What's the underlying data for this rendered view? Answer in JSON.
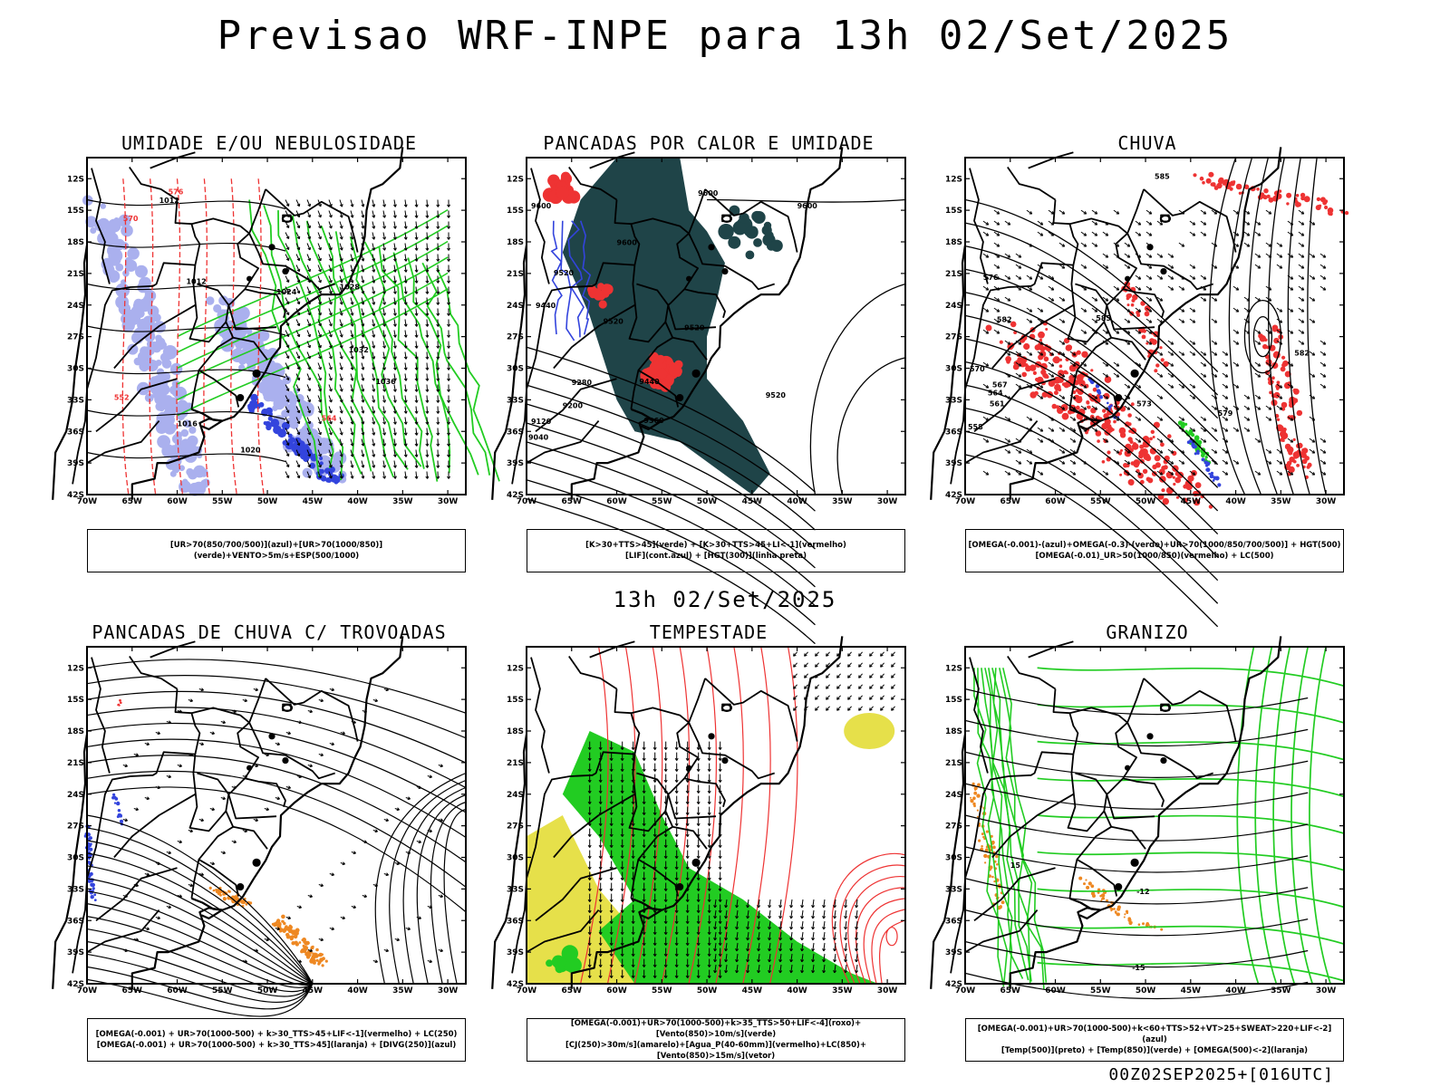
{
  "title": "Previsao WRF-INPE  para 13h 02/Set/2025",
  "subtitle": "13h 02/Set/2025",
  "footer": "00Z02SEP2025+[016UTC]",
  "axes": {
    "lat_labels": [
      "12S",
      "15S",
      "18S",
      "21S",
      "24S",
      "27S",
      "30S",
      "33S",
      "36S",
      "39S",
      "42S"
    ],
    "lon_labels": [
      "70W",
      "65W",
      "60W",
      "55W",
      "50W",
      "45W",
      "40W",
      "35W",
      "30W"
    ]
  },
  "colors": {
    "blue": "#3344dd",
    "lavender": "#aab0ee",
    "green": "#22cc22",
    "red": "#ee3333",
    "orange": "#ee8822",
    "yellow": "#e6e04a",
    "darkslate": "#1f4448"
  },
  "panels": [
    {
      "title": "UMIDADE E/OU NEBULOSIDADE",
      "legend": [
        "[UR>70(850/700/500)](azul)+[UR>70(1000/850)](verde)+VENTO>5m/s+ESP(500/1000)"
      ],
      "contour_labels": [
        "1012",
        "1016",
        "1020",
        "1024",
        "1028",
        "1032",
        "1036",
        "564",
        "570",
        "576",
        "552"
      ]
    },
    {
      "title": "PANCADAS POR CALOR E UMIDADE",
      "legend": [
        "[K>30+TTS>45](verde) + [K>30+TTS>45+LI<-1](vermelho)",
        "[LIF](cont.azul) + [HGT(300)](linha preta)"
      ],
      "contour_labels": [
        "9600",
        "9520",
        "9440",
        "9360",
        "9280",
        "9200",
        "9120",
        "9040"
      ]
    },
    {
      "title": "CHUVA",
      "legend": [
        "[OMEGA(-0.001)-(azul)+OMEGA(-0.3)-(verde)+UR>70(1000/850/700/500)] + HGT(500)",
        "[OMEGA(-0.01)_UR>50(1000/850)(vermelho) + LC(500)"
      ],
      "contour_labels": [
        "585",
        "582",
        "579",
        "576",
        "573",
        "570",
        "567",
        "564",
        "561",
        "558"
      ]
    },
    {
      "title": "PANCADAS DE CHUVA C/ TROVOADAS",
      "legend": [
        "[OMEGA(-0.001) + UR>70(1000-500) + k>30_TTS>45+LIF<-1](vermelho) + LC(250)",
        "[OMEGA(-0.001) + UR>70(1000-500) + k>30_TTS>45](laranja) + [DIVG(250)](azul)"
      ],
      "contour_labels": []
    },
    {
      "title": "TEMPESTADE",
      "legend": [
        "[OMEGA(-0.001)+UR>70(1000-500)+k>35_TTS>50+LIF<-4](roxo)+[Vento(850)>10m/s](verde)",
        "[CJ(250)>30m/s](amarelo)+[Agua_P(40-60mm)](vermelho)+LC(850)+[Vento(850)>15m/s](vetor)"
      ],
      "contour_labels": []
    },
    {
      "title": "GRANIZO",
      "legend": [
        "[OMEGA(-0.001)+UR>70(1000-500)+k<60+TTS>52+VT>25+SWEAT>220+LIF<-2](azul)",
        "[Temp(500)](preto) + [Temp(850)](verde) + [OMEGA(500)<-2](laranja)"
      ],
      "contour_labels": [
        "-15",
        "-12",
        "15"
      ]
    }
  ]
}
